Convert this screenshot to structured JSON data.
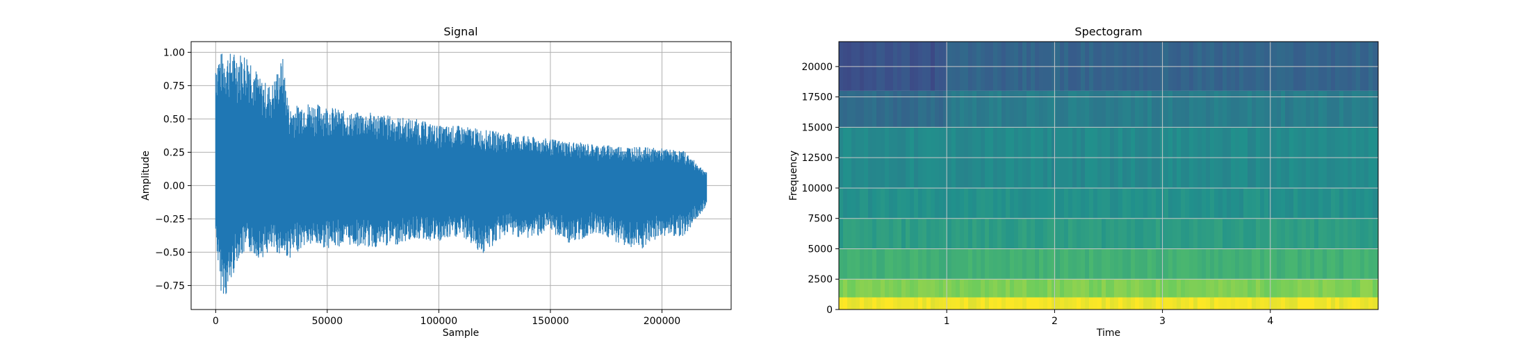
{
  "chart_data": [
    {
      "type": "line",
      "title": "Signal",
      "xlabel": "Sample",
      "ylabel": "Amplitude",
      "xlim": [
        -11000,
        231000
      ],
      "ylim": [
        -0.93,
        1.08
      ],
      "xticks": [
        0,
        50000,
        100000,
        150000,
        200000
      ],
      "yticks": [
        -0.75,
        -0.5,
        -0.25,
        0.0,
        0.25,
        0.5,
        0.75,
        1.0
      ],
      "xtick_labels": [
        "0",
        "50000",
        "100000",
        "150000",
        "200000"
      ],
      "ytick_labels": [
        "−0.75",
        "−0.50",
        "−0.25",
        "0.00",
        "0.25",
        "0.50",
        "0.75",
        "1.00"
      ],
      "grid": true,
      "series": [
        {
          "color": "#1f77b4",
          "envelope": {
            "x": [
              0,
              2000,
              5000,
              10000,
              15000,
              20000,
              25000,
              30000,
              33000,
              40000,
              50000,
              60000,
              70000,
              80000,
              90000,
              100000,
              110000,
              120000,
              130000,
              140000,
              150000,
              160000,
              170000,
              180000,
              190000,
              200000,
              210000,
              220000
            ],
            "upper": [
              0.98,
              1.0,
              1.0,
              1.0,
              1.0,
              0.8,
              0.75,
              0.97,
              0.58,
              0.63,
              0.6,
              0.55,
              0.55,
              0.52,
              0.5,
              0.45,
              0.45,
              0.42,
              0.4,
              0.37,
              0.35,
              0.33,
              0.31,
              0.3,
              0.29,
              0.28,
              0.26,
              0.1
            ],
            "lower": [
              -0.38,
              -0.79,
              -0.84,
              -0.55,
              -0.5,
              -0.55,
              -0.5,
              -0.52,
              -0.55,
              -0.45,
              -0.47,
              -0.45,
              -0.47,
              -0.45,
              -0.4,
              -0.43,
              -0.38,
              -0.52,
              -0.37,
              -0.4,
              -0.35,
              -0.45,
              -0.35,
              -0.43,
              -0.5,
              -0.38,
              -0.38,
              -0.15
            ]
          }
        }
      ]
    },
    {
      "type": "heatmap",
      "title": "Spectogram",
      "xlabel": "Time",
      "ylabel": "Frequency",
      "xlim": [
        0,
        5.0
      ],
      "ylim": [
        0,
        22050
      ],
      "xticks": [
        1,
        2,
        3,
        4
      ],
      "yticks": [
        0,
        2500,
        5000,
        7500,
        10000,
        12500,
        15000,
        17500,
        20000
      ],
      "xtick_labels": [
        "1",
        "2",
        "3",
        "4"
      ],
      "ytick_labels": [
        "0",
        "2500",
        "5000",
        "7500",
        "10000",
        "12500",
        "15000",
        "17500",
        "20000"
      ],
      "grid": true,
      "colormap": "viridis",
      "colormap_stops": [
        "#440154",
        "#3b528b",
        "#21918c",
        "#5ec962",
        "#fde725"
      ],
      "bands": [
        {
          "from": 0,
          "to": 1000,
          "level": 0.98
        },
        {
          "from": 1000,
          "to": 2500,
          "level": 0.8
        },
        {
          "from": 2500,
          "to": 5000,
          "level": 0.64
        },
        {
          "from": 5000,
          "to": 7500,
          "level": 0.55
        },
        {
          "from": 7500,
          "to": 10000,
          "level": 0.5
        },
        {
          "from": 10000,
          "to": 15000,
          "level": 0.47
        },
        {
          "from": 15000,
          "to": 18000,
          "level": 0.42
        },
        {
          "from": 18000,
          "to": 22050,
          "level": 0.34
        }
      ]
    }
  ]
}
